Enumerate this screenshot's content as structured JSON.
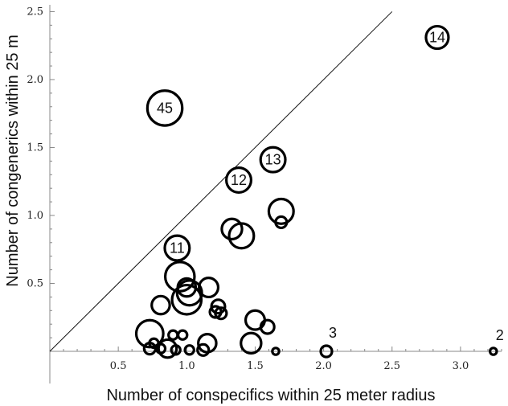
{
  "chart_data": {
    "type": "scatter",
    "title": "",
    "xlabel": "Number of conspecifics within 25 meter radius",
    "ylabel": "Number of congenerics within 25 m",
    "xlim": [
      0,
      3.3
    ],
    "ylim": [
      0,
      2.55
    ],
    "xticks": [
      0.5,
      1.0,
      1.5,
      2.0,
      2.5,
      3.0
    ],
    "xtick_labels": [
      "0.5",
      "1.0",
      "1.5",
      "2.0",
      "2.5",
      "3.0"
    ],
    "yticks": [
      0.5,
      1.0,
      1.5,
      2.0,
      2.5
    ],
    "ytick_labels": [
      "0.5",
      "1.0",
      "1.5",
      "2.0",
      "2.5"
    ],
    "reference_line": {
      "from": [
        0,
        0
      ],
      "to": [
        2.5,
        2.5
      ]
    },
    "grid": false,
    "marker": "open-circle",
    "points": [
      {
        "x": 2.83,
        "y": 2.31,
        "size": 2.0,
        "label": "14"
      },
      {
        "x": 0.84,
        "y": 1.79,
        "size": 3.1,
        "label": "45"
      },
      {
        "x": 1.63,
        "y": 1.41,
        "size": 2.2,
        "label": "13"
      },
      {
        "x": 1.38,
        "y": 1.26,
        "size": 2.2,
        "label": "12"
      },
      {
        "x": 0.93,
        "y": 0.76,
        "size": 2.2,
        "label": "11"
      },
      {
        "x": 1.69,
        "y": 1.03,
        "size": 2.2,
        "label": ""
      },
      {
        "x": 1.69,
        "y": 0.95,
        "size": 1.0,
        "label": ""
      },
      {
        "x": 1.33,
        "y": 0.9,
        "size": 1.8,
        "label": ""
      },
      {
        "x": 1.4,
        "y": 0.85,
        "size": 2.2,
        "label": ""
      },
      {
        "x": 0.95,
        "y": 0.55,
        "size": 2.6,
        "label": ""
      },
      {
        "x": 1.0,
        "y": 0.47,
        "size": 1.6,
        "label": ""
      },
      {
        "x": 1.02,
        "y": 0.43,
        "size": 2.2,
        "label": ""
      },
      {
        "x": 1.16,
        "y": 0.47,
        "size": 1.7,
        "label": ""
      },
      {
        "x": 0.81,
        "y": 0.34,
        "size": 1.6,
        "label": ""
      },
      {
        "x": 1.0,
        "y": 0.38,
        "size": 2.6,
        "label": ""
      },
      {
        "x": 1.23,
        "y": 0.33,
        "size": 1.2,
        "label": ""
      },
      {
        "x": 1.21,
        "y": 0.29,
        "size": 1.0,
        "label": ""
      },
      {
        "x": 1.25,
        "y": 0.28,
        "size": 1.0,
        "label": ""
      },
      {
        "x": 1.5,
        "y": 0.23,
        "size": 1.7,
        "label": ""
      },
      {
        "x": 1.59,
        "y": 0.18,
        "size": 1.2,
        "label": ""
      },
      {
        "x": 0.73,
        "y": 0.13,
        "size": 2.4,
        "label": ""
      },
      {
        "x": 0.9,
        "y": 0.12,
        "size": 0.8,
        "label": ""
      },
      {
        "x": 0.97,
        "y": 0.12,
        "size": 0.8,
        "label": ""
      },
      {
        "x": 0.76,
        "y": 0.06,
        "size": 0.8,
        "label": ""
      },
      {
        "x": 0.73,
        "y": 0.02,
        "size": 1.0,
        "label": ""
      },
      {
        "x": 0.81,
        "y": 0.02,
        "size": 0.8,
        "label": ""
      },
      {
        "x": 0.86,
        "y": 0.02,
        "size": 1.6,
        "label": ""
      },
      {
        "x": 0.92,
        "y": 0.01,
        "size": 0.8,
        "label": ""
      },
      {
        "x": 1.02,
        "y": 0.01,
        "size": 0.8,
        "label": ""
      },
      {
        "x": 1.15,
        "y": 0.06,
        "size": 1.6,
        "label": ""
      },
      {
        "x": 1.12,
        "y": 0.01,
        "size": 1.0,
        "label": ""
      },
      {
        "x": 1.47,
        "y": 0.06,
        "size": 1.8,
        "label": ""
      },
      {
        "x": 1.65,
        "y": 0.0,
        "size": 0.6,
        "label": ""
      },
      {
        "x": 2.02,
        "y": 0.0,
        "size": 1.0,
        "label": "3"
      },
      {
        "x": 3.24,
        "y": 0.0,
        "size": 0.6,
        "label": "2"
      }
    ]
  }
}
